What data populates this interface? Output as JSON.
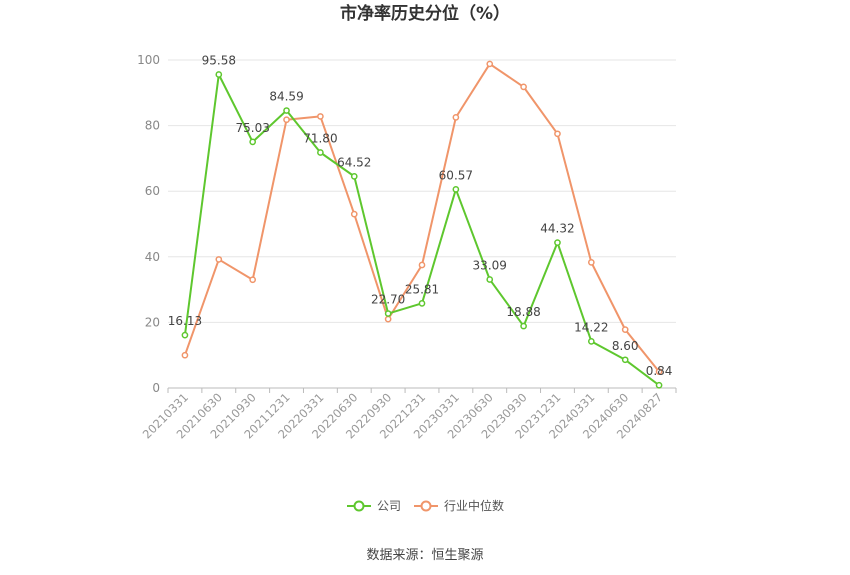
{
  "source": "数据来源：恒生聚源",
  "colors": {
    "company": "#5ec72e",
    "industry": "#f0956a",
    "grid": "#e6e6e6",
    "axis": "#bbbbbb"
  },
  "chart_data": {
    "type": "line",
    "title": "市净率历史分位（%）",
    "xlabel": "",
    "ylabel": "",
    "ylim": [
      0,
      100
    ],
    "yticks": [
      0,
      20,
      40,
      60,
      80,
      100
    ],
    "grid": true,
    "legend_position": "bottom-center",
    "categories": [
      "20210331",
      "20210630",
      "20210930",
      "20211231",
      "20220331",
      "20220630",
      "20220930",
      "20221231",
      "20230331",
      "20230630",
      "20230930",
      "20231231",
      "20240331",
      "20240630",
      "20240827"
    ],
    "series": [
      {
        "name": "公司",
        "values": [
          16.13,
          95.58,
          75.03,
          84.59,
          71.8,
          64.52,
          22.7,
          25.81,
          60.57,
          33.09,
          18.88,
          44.32,
          14.22,
          8.6,
          0.84
        ],
        "labels": [
          "16.13",
          "95.58",
          "75.03",
          "84.59",
          "71.80",
          "64.52",
          "22.70",
          "25.81",
          "60.57",
          "33.09",
          "18.88",
          "44.32",
          "14.22",
          "8.60",
          "0.84"
        ]
      },
      {
        "name": "行业中位数",
        "values": [
          10,
          39.2,
          33,
          81.8,
          82.8,
          53,
          21,
          37.5,
          82.5,
          98.8,
          91.8,
          77.5,
          38.3,
          17.8,
          5
        ]
      }
    ]
  }
}
